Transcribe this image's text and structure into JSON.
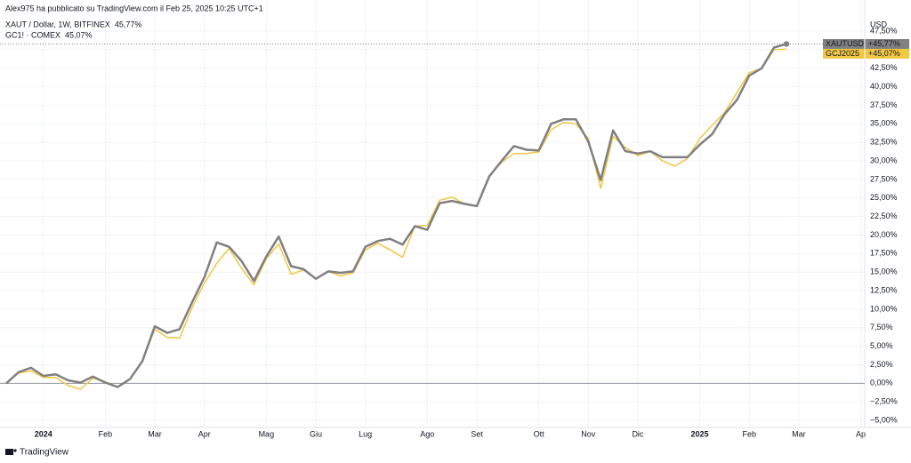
{
  "chart_data": {
    "type": "line",
    "title": "Alex975 ha pubblicato su TradingView.com il Feb 25, 2025 10:25 UTC+1",
    "y_axis_label": "USD",
    "brand": "TradingView",
    "categories": [
      null,
      null,
      null,
      "2024",
      null,
      null,
      null,
      null,
      "Feb",
      null,
      null,
      null,
      "Mar",
      null,
      null,
      null,
      "Apr",
      null,
      null,
      null,
      null,
      "Mag",
      null,
      null,
      null,
      "Giu",
      null,
      null,
      null,
      "Lug",
      null,
      null,
      null,
      null,
      "Ago",
      null,
      null,
      null,
      "Set",
      null,
      null,
      null,
      null,
      "Ott",
      null,
      null,
      null,
      "Nov",
      null,
      null,
      null,
      "Dic",
      null,
      null,
      null,
      null,
      "2025",
      null,
      null,
      null,
      "Feb",
      null,
      null,
      null,
      "Mar",
      null,
      null,
      null,
      null,
      "Ap"
    ],
    "series": [
      {
        "name": "XAUT / Dollar, 1W, BITFINEX",
        "legend_value": "45,77%",
        "tag_name": "XAUTUSD",
        "tag_value": "+45,77%",
        "color": "#808080",
        "values": [
          0,
          1.5,
          2.1,
          1,
          1.2,
          0.4,
          0.1,
          0.9,
          0.1,
          -0.5,
          0.6,
          3,
          7.7,
          6.8,
          7.3,
          10.9,
          14.3,
          19,
          18.4,
          16.5,
          13.8,
          17.1,
          19.8,
          15.8,
          15.4,
          14.1,
          15.1,
          14.9,
          15.1,
          18.4,
          19.2,
          19.5,
          18.7,
          21.2,
          20.7,
          24.3,
          24.6,
          24.2,
          23.9,
          27.9,
          30,
          32,
          31.5,
          31.4,
          35,
          35.6,
          35.6,
          32.6,
          27.4,
          34.1,
          31.3,
          31,
          31.3,
          30.5,
          30.5,
          30.5,
          32.2,
          33.6,
          36.3,
          38.2,
          41.5,
          42.5,
          45.3,
          45.77,
          null,
          null,
          null,
          null,
          null,
          null
        ]
      },
      {
        "name": "GC1! · COMEX",
        "legend_value": "45,07%",
        "tag_name": "GCJ2025",
        "tag_value": "+45,07%",
        "color": "#f2c744",
        "values": [
          0,
          1.4,
          1.7,
          0.8,
          0.8,
          -0.3,
          -0.8,
          0.7,
          0.2,
          -0.5,
          0.6,
          3,
          7.3,
          6.2,
          6.1,
          10.2,
          13.5,
          16.2,
          18.2,
          15.5,
          13.3,
          16.8,
          18.8,
          14.7,
          15.3,
          14.1,
          15.1,
          14.5,
          14.9,
          18,
          18.9,
          18,
          17,
          21.2,
          21.3,
          24.7,
          25.1,
          24.2,
          23.9,
          28,
          29.8,
          31,
          31,
          31.2,
          34.2,
          35.2,
          35,
          33,
          26.3,
          33.3,
          31.8,
          30.7,
          31.3,
          30,
          29.3,
          30.3,
          33,
          34.8,
          36.5,
          39.2,
          41.9,
          42.5,
          45,
          45.07,
          null,
          null,
          null,
          null,
          null,
          null
        ]
      }
    ],
    "ylim": [
      -5.95,
      51.7
    ],
    "yticks": [
      {
        "value": -5,
        "label": "−5,00%"
      },
      {
        "value": -2.5,
        "label": "−2,50%"
      },
      {
        "value": 0,
        "label": "0,00%"
      },
      {
        "value": 2.5,
        "label": "2,50%"
      },
      {
        "value": 5,
        "label": "5,00%"
      },
      {
        "value": 7.5,
        "label": "7,50%"
      },
      {
        "value": 10,
        "label": "10,00%"
      },
      {
        "value": 12.5,
        "label": "12,50%"
      },
      {
        "value": 15,
        "label": "15,00%"
      },
      {
        "value": 17.5,
        "label": "17,50%"
      },
      {
        "value": 20,
        "label": "20,00%"
      },
      {
        "value": 22.5,
        "label": "22,50%"
      },
      {
        "value": 25,
        "label": "25,00%"
      },
      {
        "value": 27.5,
        "label": "27,50%"
      },
      {
        "value": 30,
        "label": "30,00%"
      },
      {
        "value": 32.5,
        "label": "32,50%"
      },
      {
        "value": 35,
        "label": "35,00%"
      },
      {
        "value": 37.5,
        "label": "37,50%"
      },
      {
        "value": 40,
        "label": "40,00%"
      },
      {
        "value": 42.5,
        "label": "42,50%"
      },
      {
        "value": 45,
        "label": "45,00%"
      },
      {
        "value": 47.5,
        "label": "47,50%"
      }
    ],
    "grid": true
  }
}
